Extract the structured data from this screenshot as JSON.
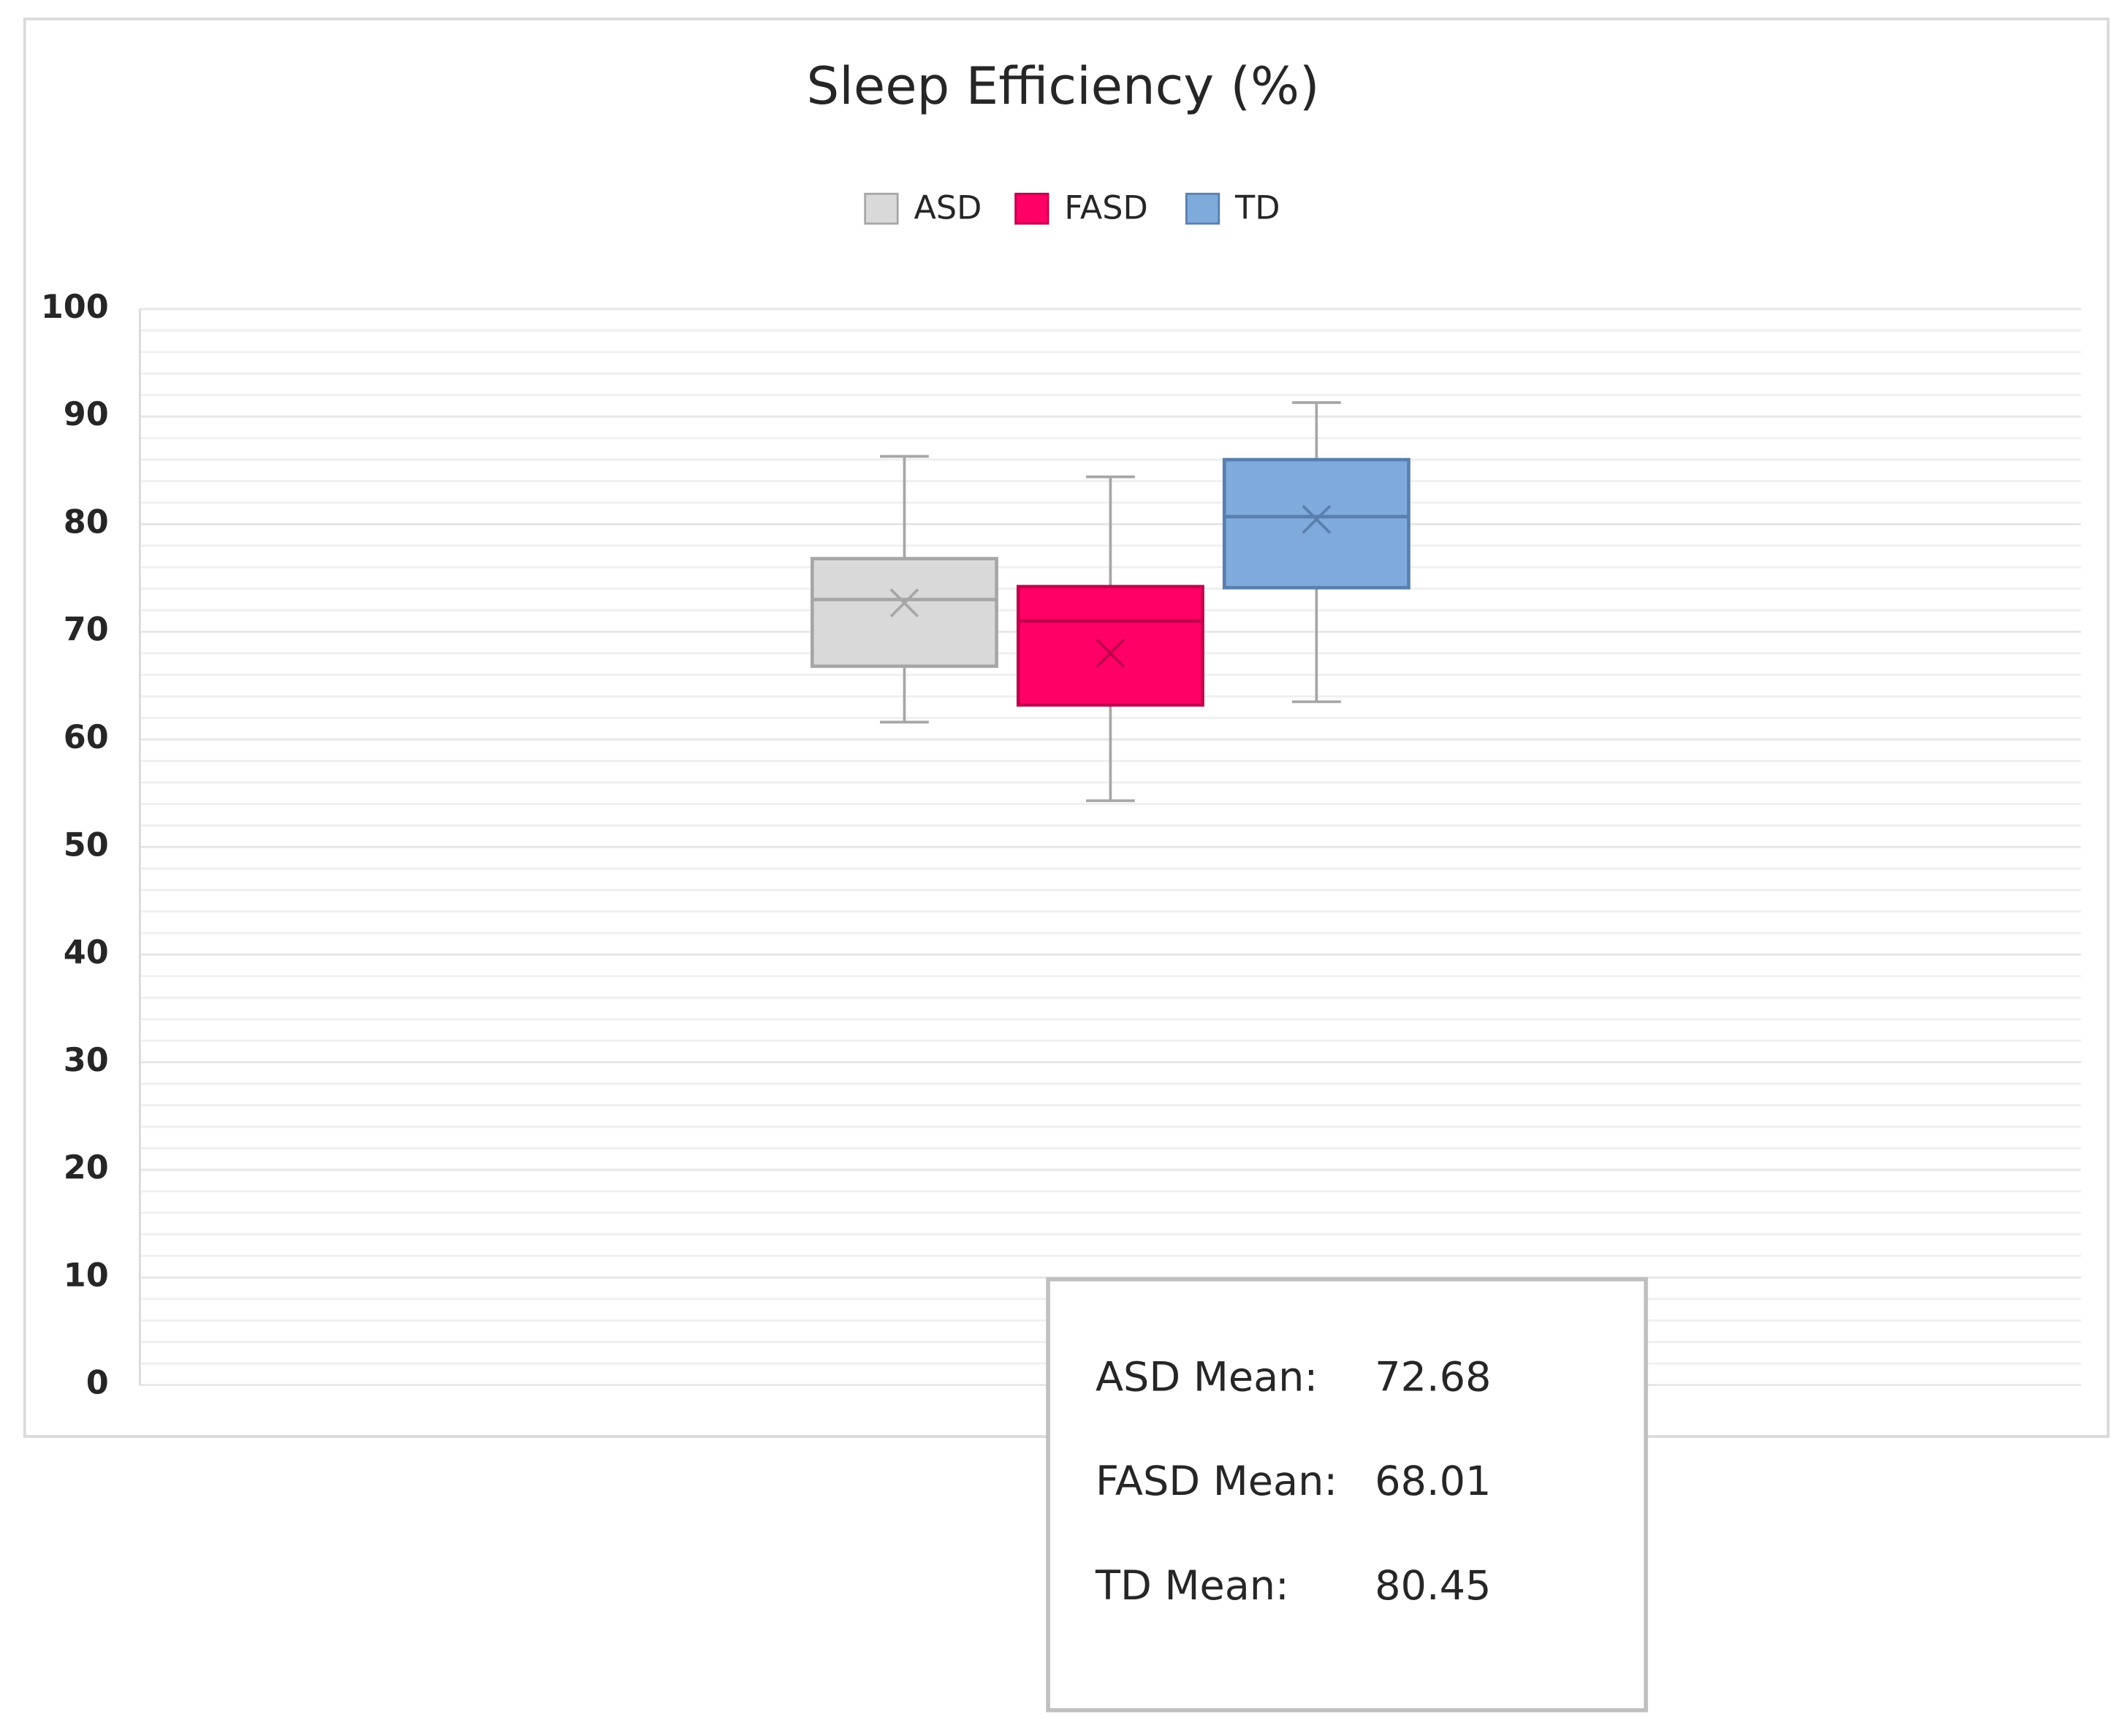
{
  "chart_data": {
    "type": "box",
    "title": "Sleep Efficiency (%)",
    "series": [
      {
        "name": "ASD",
        "color": "#d9d9d9",
        "stroke": "#a6a6a6",
        "whisker_low": 61.6,
        "q1": 66.8,
        "median": 73.0,
        "q3": 76.8,
        "whisker_high": 86.3,
        "mean": 72.68
      },
      {
        "name": "FASD",
        "color": "#ff0066",
        "stroke": "#c0004d",
        "whisker_low": 54.3,
        "q1": 63.2,
        "median": 71.0,
        "q3": 74.2,
        "whisker_high": 84.4,
        "mean": 68.01
      },
      {
        "name": "TD",
        "color": "#7faadc",
        "stroke": "#5a7fae",
        "whisker_low": 63.5,
        "q1": 74.1,
        "median": 80.7,
        "q3": 86.0,
        "whisker_high": 91.3,
        "mean": 80.45
      }
    ],
    "ylim": [
      0,
      100
    ],
    "yticks": [
      0,
      10,
      20,
      30,
      40,
      50,
      60,
      70,
      80,
      90,
      100
    ],
    "grid": true,
    "grid_step": 2,
    "legend": "top",
    "annotation": {
      "labels": [
        "ASD Mean:",
        "FASD Mean:",
        "TD Mean:"
      ]
    }
  }
}
